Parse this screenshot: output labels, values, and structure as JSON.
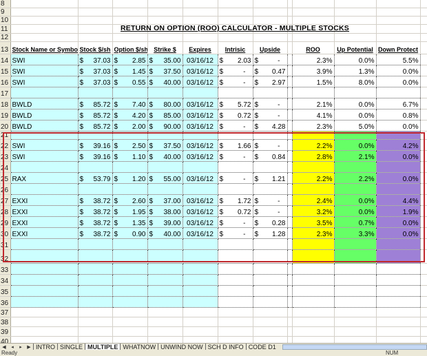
{
  "title": "RETURN ON OPTION (ROO) CALCULATOR - MULTIPLE STOCKS",
  "headers": [
    "Stock Name or Symbol",
    "Stock $/sh",
    "Option $/sh",
    "Strike $",
    "Expires",
    "Intrisic",
    "Upside",
    "ROO",
    "Up Potential",
    "Down Protect"
  ],
  "currency_symbol": "$",
  "rows": [
    {
      "n": "14",
      "name": "SWI",
      "stock": "37.03",
      "option": "2.85",
      "strike": "35.00",
      "expires": "03/16/12",
      "intrinsic": "2.03",
      "upside": "-",
      "roo": "2.3%",
      "up": "0.0%",
      "down": "5.5%"
    },
    {
      "n": "15",
      "name": "SWI",
      "stock": "37.03",
      "option": "1.45",
      "strike": "37.50",
      "expires": "03/16/12",
      "intrinsic": "-",
      "upside": "0.47",
      "roo": "3.9%",
      "up": "1.3%",
      "down": "0.0%"
    },
    {
      "n": "16",
      "name": "SWI",
      "stock": "37.03",
      "option": "0.55",
      "strike": "40.00",
      "expires": "03/16/12",
      "intrinsic": "-",
      "upside": "2.97",
      "roo": "1.5%",
      "up": "8.0%",
      "down": "0.0%"
    },
    {
      "n": "17"
    },
    {
      "n": "18",
      "name": "BWLD",
      "stock": "85.72",
      "option": "7.40",
      "strike": "80.00",
      "expires": "03/16/12",
      "intrinsic": "5.72",
      "upside": "-",
      "roo": "2.1%",
      "up": "0.0%",
      "down": "6.7%"
    },
    {
      "n": "19",
      "name": "BWLD",
      "stock": "85.72",
      "option": "4.20",
      "strike": "85.00",
      "expires": "03/16/12",
      "intrinsic": "0.72",
      "upside": "-",
      "roo": "4.1%",
      "up": "0.0%",
      "down": "0.8%"
    },
    {
      "n": "20",
      "name": "BWLD",
      "stock": "85.72",
      "option": "2.00",
      "strike": "90.00",
      "expires": "03/16/12",
      "intrinsic": "-",
      "upside": "4.28",
      "roo": "2.3%",
      "up": "5.0%",
      "down": "0.0%"
    },
    {
      "n": "21"
    },
    {
      "n": "22",
      "name": "SWI",
      "stock": "39.16",
      "option": "2.50",
      "strike": "37.50",
      "expires": "03/16/12",
      "intrinsic": "1.66",
      "upside": "-",
      "roo": "2.2%",
      "up": "0.0%",
      "down": "4.2%"
    },
    {
      "n": "23",
      "name": "SWI",
      "stock": "39.16",
      "option": "1.10",
      "strike": "40.00",
      "expires": "03/16/12",
      "intrinsic": "-",
      "upside": "0.84",
      "roo": "2.8%",
      "up": "2.1%",
      "down": "0.0%"
    },
    {
      "n": "24"
    },
    {
      "n": "25",
      "name": "RAX",
      "stock": "53.79",
      "option": "1.20",
      "strike": "55.00",
      "expires": "03/16/12",
      "intrinsic": "-",
      "upside": "1.21",
      "roo": "2.2%",
      "up": "2.2%",
      "down": "0.0%"
    },
    {
      "n": "26"
    },
    {
      "n": "27",
      "name": "EXXI",
      "stock": "38.72",
      "option": "2.60",
      "strike": "37.00",
      "expires": "03/16/12",
      "intrinsic": "1.72",
      "upside": "-",
      "roo": "2.4%",
      "up": "0.0%",
      "down": "4.4%"
    },
    {
      "n": "28",
      "name": "EXXI",
      "stock": "38.72",
      "option": "1.95",
      "strike": "38.00",
      "expires": "03/16/12",
      "intrinsic": "0.72",
      "upside": "-",
      "roo": "3.2%",
      "up": "0.0%",
      "down": "1.9%"
    },
    {
      "n": "29",
      "name": "EXXI",
      "stock": "38.72",
      "option": "1.35",
      "strike": "39.00",
      "expires": "03/16/12",
      "intrinsic": "-",
      "upside": "0.28",
      "roo": "3.5%",
      "up": "0.7%",
      "down": "0.0%"
    },
    {
      "n": "30",
      "name": "EXXI",
      "stock": "38.72",
      "option": "0.90",
      "strike": "40.00",
      "expires": "03/16/12",
      "intrinsic": "-",
      "upside": "1.28",
      "roo": "2.3%",
      "up": "3.3%",
      "down": "0.0%"
    },
    {
      "n": "31"
    },
    {
      "n": "32"
    },
    {
      "n": "33"
    },
    {
      "n": "34"
    },
    {
      "n": "35"
    },
    {
      "n": "36"
    }
  ],
  "pre_rows": [
    "8",
    "9",
    "10",
    "11",
    "12"
  ],
  "header_row": "13",
  "post_rows": [
    "37",
    "38",
    "39",
    "40"
  ],
  "highlight_rows": [
    "21",
    "22",
    "23",
    "24",
    "25",
    "26",
    "27",
    "28",
    "29",
    "30",
    "31",
    "32"
  ],
  "colors": {
    "input_fill": "#ccffff",
    "roo_fill": "#ffff00",
    "up_fill": "#66ff66",
    "down_fill": "#9e80d6",
    "selection_border": "#c0282d"
  },
  "sheet_tabs": [
    {
      "label": "INTRO",
      "active": false
    },
    {
      "label": "SINGLE",
      "active": false
    },
    {
      "label": "MULTIPLE",
      "active": true
    },
    {
      "label": "WHATNOW",
      "active": false
    },
    {
      "label": "UNWIND NOW",
      "active": false
    },
    {
      "label": "SCH D INFO",
      "active": false
    },
    {
      "label": "CODE D1",
      "active": false
    }
  ],
  "status": {
    "text": "Ready",
    "num": "NUM"
  }
}
